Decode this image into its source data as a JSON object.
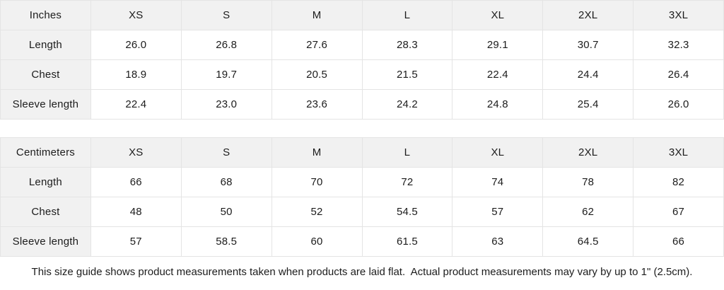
{
  "colors": {
    "header_cell_bg": "#f1f1f1",
    "data_cell_bg": "#ffffff",
    "border": "#e4e4e4",
    "text": "#1c1c1c"
  },
  "tables": [
    {
      "id": "inches-table",
      "unit_label": "Inches",
      "size_headers": [
        "XS",
        "S",
        "M",
        "L",
        "XL",
        "2XL",
        "3XL"
      ],
      "rows": [
        {
          "label": "Length",
          "values": [
            "26.0",
            "26.8",
            "27.6",
            "28.3",
            "29.1",
            "30.7",
            "32.3"
          ]
        },
        {
          "label": "Chest",
          "values": [
            "18.9",
            "19.7",
            "20.5",
            "21.5",
            "22.4",
            "24.4",
            "26.4"
          ]
        },
        {
          "label": "Sleeve length",
          "values": [
            "22.4",
            "23.0",
            "23.6",
            "24.2",
            "24.8",
            "25.4",
            "26.0"
          ]
        }
      ]
    },
    {
      "id": "centimeters-table",
      "unit_label": "Centimeters",
      "size_headers": [
        "XS",
        "S",
        "M",
        "L",
        "XL",
        "2XL",
        "3XL"
      ],
      "rows": [
        {
          "label": "Length",
          "values": [
            "66",
            "68",
            "70",
            "72",
            "74",
            "78",
            "82"
          ]
        },
        {
          "label": "Chest",
          "values": [
            "48",
            "50",
            "52",
            "54.5",
            "57",
            "62",
            "67"
          ]
        },
        {
          "label": "Sleeve length",
          "values": [
            "57",
            "58.5",
            "60",
            "61.5",
            "63",
            "64.5",
            "66"
          ]
        }
      ]
    }
  ],
  "footer": {
    "note": "This size guide shows product measurements taken when products are laid flat.  Actual product measurements may vary by up to 1\" (2.5cm)."
  }
}
